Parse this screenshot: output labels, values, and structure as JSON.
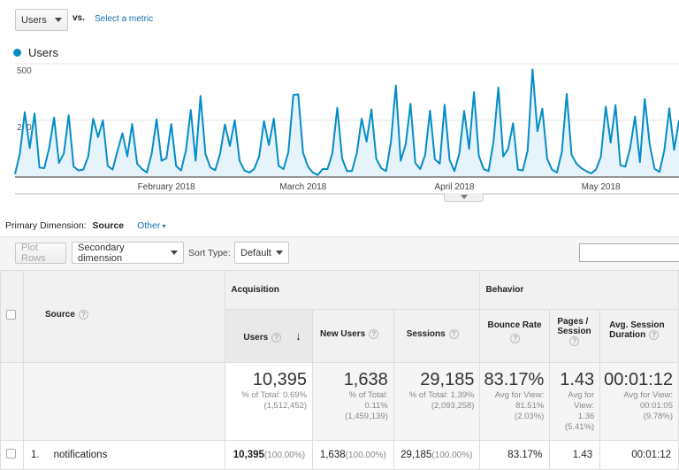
{
  "top": {
    "metric": "Users",
    "vs": "vs.",
    "select_metric": "Select a metric"
  },
  "legend": {
    "label": "Users",
    "color": "#058dc7"
  },
  "chart_data": {
    "type": "area",
    "series": [
      {
        "name": "Users",
        "values": [
          13,
          104,
          286,
          128,
          280,
          42,
          39,
          130,
          263,
          62,
          104,
          273,
          46,
          29,
          33,
          91,
          258,
          176,
          250,
          49,
          33,
          117,
          193,
          91,
          234,
          59,
          35,
          20,
          104,
          255,
          72,
          83,
          234,
          49,
          29,
          117,
          296,
          72,
          358,
          102,
          42,
          30,
          102,
          232,
          137,
          250,
          72,
          29,
          20,
          36,
          91,
          247,
          141,
          258,
          49,
          35,
          111,
          362,
          365,
          107,
          46,
          20,
          9,
          35,
          35,
          104,
          306,
          81,
          26,
          26,
          104,
          258,
          156,
          299,
          81,
          39,
          26,
          156,
          404,
          72,
          143,
          323,
          62,
          35,
          98,
          293,
          78,
          59,
          319,
          76,
          26,
          104,
          292,
          124,
          375,
          94,
          35,
          26,
          156,
          395,
          91,
          124,
          237,
          33,
          29,
          117,
          475,
          202,
          302,
          81,
          33,
          20,
          111,
          367,
          98,
          59,
          39,
          26,
          16,
          33,
          89,
          310,
          152,
          318,
          52,
          46,
          130,
          267,
          65,
          345,
          143,
          36,
          23,
          117,
          303,
          120,
          250
        ]
      }
    ],
    "x": [
      "2018-01-01",
      "2018-01-02",
      "2018-01-03",
      "2018-01-04",
      "2018-01-05",
      "2018-01-06",
      "2018-01-07",
      "2018-01-08",
      "2018-01-09",
      "2018-01-10",
      "2018-01-11",
      "2018-01-12",
      "2018-01-13",
      "2018-01-14",
      "2018-01-15",
      "2018-01-16",
      "2018-01-17",
      "2018-01-18",
      "2018-01-19",
      "2018-01-20",
      "2018-01-21",
      "2018-01-22",
      "2018-01-23",
      "2018-01-24",
      "2018-01-25",
      "2018-01-26",
      "2018-01-27",
      "2018-01-28",
      "2018-01-29",
      "2018-01-30",
      "2018-01-31",
      "2018-02-01",
      "2018-02-02",
      "2018-02-03",
      "2018-02-04",
      "2018-02-05",
      "2018-02-06",
      "2018-02-07",
      "2018-02-08",
      "2018-02-09",
      "2018-02-10",
      "2018-02-11",
      "2018-02-12",
      "2018-02-13",
      "2018-02-14",
      "2018-02-15",
      "2018-02-16",
      "2018-02-17",
      "2018-02-18",
      "2018-02-19",
      "2018-02-20",
      "2018-02-21",
      "2018-02-22",
      "2018-02-23",
      "2018-02-24",
      "2018-02-25",
      "2018-02-26",
      "2018-02-27",
      "2018-02-28",
      "2018-03-01",
      "2018-03-02",
      "2018-03-03",
      "2018-03-04",
      "2018-03-05",
      "2018-03-06",
      "2018-03-07",
      "2018-03-08",
      "2018-03-09",
      "2018-03-10",
      "2018-03-11",
      "2018-03-12",
      "2018-03-13",
      "2018-03-14",
      "2018-03-15",
      "2018-03-16",
      "2018-03-17",
      "2018-03-18",
      "2018-03-19",
      "2018-03-20",
      "2018-03-21",
      "2018-03-22",
      "2018-03-23",
      "2018-03-24",
      "2018-03-25",
      "2018-03-26",
      "2018-03-27",
      "2018-03-28",
      "2018-03-29",
      "2018-03-30",
      "2018-03-31",
      "2018-04-01",
      "2018-04-02",
      "2018-04-03",
      "2018-04-04",
      "2018-04-05",
      "2018-04-06",
      "2018-04-07",
      "2018-04-08",
      "2018-04-09",
      "2018-04-10",
      "2018-04-11",
      "2018-04-12",
      "2018-04-13",
      "2018-04-14",
      "2018-04-15",
      "2018-04-16",
      "2018-04-17",
      "2018-04-18",
      "2018-04-19",
      "2018-04-20",
      "2018-04-21",
      "2018-04-22",
      "2018-04-23",
      "2018-04-24",
      "2018-04-25",
      "2018-04-26",
      "2018-04-27",
      "2018-04-28",
      "2018-04-29",
      "2018-04-30",
      "2018-05-01",
      "2018-05-02",
      "2018-05-03",
      "2018-05-04",
      "2018-05-05",
      "2018-05-06",
      "2018-05-07",
      "2018-05-08",
      "2018-05-09",
      "2018-05-10",
      "2018-05-11",
      "2018-05-12",
      "2018-05-13",
      "2018-05-14",
      "2018-05-15",
      "2018-05-16",
      "2018-05-17"
    ],
    "ylim": [
      0,
      500
    ],
    "yticks": [
      "500",
      "250"
    ],
    "xticks": [
      {
        "date": "2018-02-01",
        "label": "February 2018"
      },
      {
        "date": "2018-03-01",
        "label": "March 2018"
      },
      {
        "date": "2018-04-01",
        "label": "April 2018"
      },
      {
        "date": "2018-05-01",
        "label": "May 2018"
      }
    ],
    "grid": true,
    "line_color": "#058dc7",
    "fill_color": "#e6f3fa"
  },
  "dimension": {
    "label": "Primary Dimension:",
    "current": "Source",
    "other": "Other"
  },
  "toolbar": {
    "plot_rows": "Plot Rows",
    "secondary": "Secondary dimension",
    "sort_label": "Sort Type:",
    "sort_value": "Default",
    "search_placeholder": ""
  },
  "table": {
    "groups": {
      "acquisition": "Acquisition",
      "behavior": "Behavior"
    },
    "headers": {
      "source": "Source",
      "users": "Users",
      "new_users": "New Users",
      "sessions": "Sessions",
      "bounce": "Bounce Rate",
      "pages": "Pages / Session",
      "duration": "Avg. Session Duration"
    },
    "totals": {
      "users": {
        "value": "10,395",
        "l1": "% of Total: 0.69%",
        "l2": "(1,512,452)"
      },
      "new_users": {
        "value": "1,638",
        "l1": "% of Total:",
        "l2": "0.11%",
        "l3": "(1,459,139)"
      },
      "sessions": {
        "value": "29,185",
        "l1": "% of Total: 1.39%",
        "l2": "(2,093,258)"
      },
      "bounce": {
        "value": "83.17%",
        "l1": "Avg for View:",
        "l2": "81.51%",
        "l3": "(2.03%)"
      },
      "pages": {
        "value": "1.43",
        "l1": "Avg for",
        "l2": "View:",
        "l3": "1.36",
        "l4": "(5.41%)"
      },
      "duration": {
        "value": "00:01:12",
        "l1": "Avg for View:",
        "l2": "00:01:05",
        "l3": "(9.78%)"
      }
    },
    "rows": [
      {
        "index": "1.",
        "source": "notifications",
        "users": "10,395",
        "users_pct": "(100.00%)",
        "new_users": "1,638",
        "new_users_pct": "(100.00%)",
        "sessions": "29,185",
        "sessions_pct": "(100.00%)",
        "bounce": "83.17%",
        "pages": "1.43",
        "duration": "00:01:12"
      }
    ]
  }
}
